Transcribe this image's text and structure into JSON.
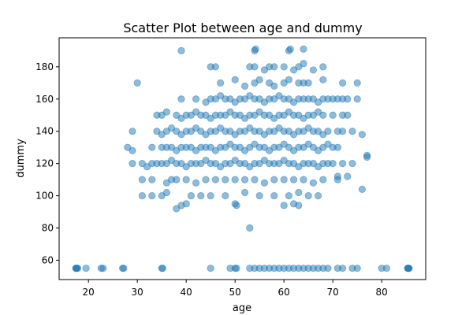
{
  "chart_data": {
    "type": "scatter",
    "title": "Scatter Plot between age and dummy",
    "xlabel": "age",
    "ylabel": "dummy",
    "xlim": [
      14,
      89
    ],
    "ylim": [
      48,
      198
    ],
    "xticks": [
      20,
      30,
      40,
      50,
      60,
      70,
      80
    ],
    "yticks": [
      60,
      80,
      100,
      120,
      140,
      160,
      180
    ],
    "grid": false,
    "legend": "none",
    "marker_color": "#1f77b4",
    "marker_alpha": 0.5,
    "series": [
      {
        "points": [
          [
            17.5,
            55
          ],
          [
            17.6,
            55
          ],
          [
            17.8,
            55
          ],
          [
            17.4,
            55
          ],
          [
            19.5,
            55
          ],
          [
            22.6,
            55
          ],
          [
            23,
            55
          ],
          [
            27,
            55
          ],
          [
            27.2,
            55
          ],
          [
            35,
            55
          ],
          [
            35.2,
            55
          ],
          [
            45,
            55
          ],
          [
            49,
            55
          ],
          [
            50,
            55
          ],
          [
            50.3,
            55
          ],
          [
            53,
            55
          ],
          [
            54,
            55
          ],
          [
            55,
            55
          ],
          [
            56,
            55
          ],
          [
            57,
            55
          ],
          [
            58,
            55
          ],
          [
            59,
            55
          ],
          [
            60,
            55
          ],
          [
            61,
            55
          ],
          [
            62,
            55
          ],
          [
            63,
            55
          ],
          [
            64,
            55
          ],
          [
            65,
            55
          ],
          [
            66,
            55
          ],
          [
            67,
            55
          ],
          [
            68,
            55
          ],
          [
            69,
            55
          ],
          [
            71,
            55
          ],
          [
            72,
            55
          ],
          [
            74,
            55
          ],
          [
            75,
            55
          ],
          [
            80,
            55
          ],
          [
            81,
            55
          ],
          [
            85.3,
            55
          ],
          [
            85.5,
            55
          ],
          [
            85.6,
            55
          ],
          [
            85.4,
            55
          ],
          [
            53,
            80
          ],
          [
            38,
            92
          ],
          [
            39,
            94
          ],
          [
            40,
            95
          ],
          [
            50,
            95
          ],
          [
            50.3,
            94
          ],
          [
            60,
            94
          ],
          [
            62,
            95
          ],
          [
            63,
            94
          ],
          [
            31,
            100
          ],
          [
            33,
            100
          ],
          [
            35,
            100
          ],
          [
            36,
            102
          ],
          [
            41,
            100
          ],
          [
            43,
            100
          ],
          [
            45,
            100
          ],
          [
            48,
            100
          ],
          [
            52,
            102
          ],
          [
            55,
            100
          ],
          [
            58,
            100
          ],
          [
            61,
            100
          ],
          [
            63,
            102
          ],
          [
            65,
            100
          ],
          [
            67,
            100
          ],
          [
            76,
            104
          ],
          [
            31,
            110
          ],
          [
            33,
            110
          ],
          [
            36,
            108
          ],
          [
            37,
            110
          ],
          [
            38,
            110
          ],
          [
            40,
            110
          ],
          [
            42,
            108
          ],
          [
            44,
            110
          ],
          [
            46,
            110
          ],
          [
            48,
            110
          ],
          [
            50,
            110
          ],
          [
            52,
            110
          ],
          [
            54,
            110
          ],
          [
            56,
            108
          ],
          [
            58,
            110
          ],
          [
            60,
            110
          ],
          [
            62,
            110
          ],
          [
            64,
            110
          ],
          [
            66,
            108
          ],
          [
            68,
            110
          ],
          [
            71,
            110
          ],
          [
            71,
            112
          ],
          [
            73,
            112
          ],
          [
            29,
            120
          ],
          [
            31,
            120
          ],
          [
            32,
            118
          ],
          [
            33,
            120
          ],
          [
            34,
            120
          ],
          [
            35,
            120
          ],
          [
            36,
            120
          ],
          [
            37,
            122
          ],
          [
            38,
            120
          ],
          [
            39,
            120
          ],
          [
            40,
            118
          ],
          [
            41,
            120
          ],
          [
            42,
            120
          ],
          [
            43,
            120
          ],
          [
            44,
            122
          ],
          [
            45,
            120
          ],
          [
            46,
            120
          ],
          [
            47,
            118
          ],
          [
            48,
            120
          ],
          [
            49,
            120
          ],
          [
            50,
            122
          ],
          [
            51,
            120
          ],
          [
            52,
            120
          ],
          [
            53,
            118
          ],
          [
            54,
            120
          ],
          [
            55,
            120
          ],
          [
            56,
            122
          ],
          [
            57,
            120
          ],
          [
            58,
            120
          ],
          [
            59,
            120
          ],
          [
            60,
            122
          ],
          [
            61,
            120
          ],
          [
            62,
            120
          ],
          [
            63,
            118
          ],
          [
            64,
            120
          ],
          [
            65,
            120
          ],
          [
            66,
            120
          ],
          [
            67,
            118
          ],
          [
            68,
            120
          ],
          [
            69,
            120
          ],
          [
            70,
            120
          ],
          [
            72,
            120
          ],
          [
            74,
            120
          ],
          [
            77,
            124
          ],
          [
            77,
            125
          ],
          [
            28,
            130
          ],
          [
            29,
            128
          ],
          [
            33,
            130
          ],
          [
            35,
            130
          ],
          [
            36,
            130
          ],
          [
            37,
            130
          ],
          [
            38,
            128
          ],
          [
            39,
            130
          ],
          [
            40,
            130
          ],
          [
            41,
            130
          ],
          [
            42,
            128
          ],
          [
            43,
            130
          ],
          [
            44,
            130
          ],
          [
            45,
            130
          ],
          [
            46,
            128
          ],
          [
            47,
            130
          ],
          [
            48,
            130
          ],
          [
            49,
            132
          ],
          [
            50,
            130
          ],
          [
            51,
            130
          ],
          [
            52,
            128
          ],
          [
            53,
            130
          ],
          [
            54,
            132
          ],
          [
            55,
            130
          ],
          [
            56,
            130
          ],
          [
            57,
            128
          ],
          [
            58,
            130
          ],
          [
            59,
            130
          ],
          [
            60,
            132
          ],
          [
            61,
            130
          ],
          [
            62,
            128
          ],
          [
            63,
            130
          ],
          [
            64,
            130
          ],
          [
            65,
            132
          ],
          [
            66,
            130
          ],
          [
            67,
            128
          ],
          [
            68,
            130
          ],
          [
            69,
            132
          ],
          [
            70,
            130
          ],
          [
            71,
            130
          ],
          [
            29,
            140
          ],
          [
            34,
            140
          ],
          [
            35,
            138
          ],
          [
            36,
            140
          ],
          [
            37,
            142
          ],
          [
            38,
            140
          ],
          [
            39,
            138
          ],
          [
            40,
            140
          ],
          [
            41,
            140
          ],
          [
            42,
            142
          ],
          [
            43,
            140
          ],
          [
            44,
            138
          ],
          [
            45,
            140
          ],
          [
            46,
            140
          ],
          [
            47,
            142
          ],
          [
            48,
            140
          ],
          [
            49,
            140
          ],
          [
            50,
            138
          ],
          [
            51,
            140
          ],
          [
            52,
            140
          ],
          [
            53,
            142
          ],
          [
            54,
            140
          ],
          [
            55,
            140
          ],
          [
            56,
            138
          ],
          [
            57,
            140
          ],
          [
            58,
            140
          ],
          [
            59,
            142
          ],
          [
            60,
            140
          ],
          [
            61,
            140
          ],
          [
            62,
            138
          ],
          [
            63,
            140
          ],
          [
            64,
            140
          ],
          [
            65,
            142
          ],
          [
            66,
            140
          ],
          [
            67,
            140
          ],
          [
            68,
            138
          ],
          [
            69,
            140
          ],
          [
            71,
            140
          ],
          [
            72,
            140
          ],
          [
            74,
            140
          ],
          [
            76,
            138
          ],
          [
            34,
            150
          ],
          [
            35,
            150
          ],
          [
            36,
            152
          ],
          [
            38,
            150
          ],
          [
            39,
            148
          ],
          [
            40,
            150
          ],
          [
            41,
            150
          ],
          [
            42,
            152
          ],
          [
            43,
            150
          ],
          [
            44,
            150
          ],
          [
            45,
            148
          ],
          [
            46,
            150
          ],
          [
            47,
            150
          ],
          [
            48,
            150
          ],
          [
            49,
            152
          ],
          [
            50,
            150
          ],
          [
            51,
            150
          ],
          [
            52,
            148
          ],
          [
            53,
            150
          ],
          [
            54,
            150
          ],
          [
            55,
            152
          ],
          [
            56,
            150
          ],
          [
            57,
            150
          ],
          [
            58,
            148
          ],
          [
            59,
            150
          ],
          [
            60,
            150
          ],
          [
            61,
            152
          ],
          [
            62,
            150
          ],
          [
            63,
            150
          ],
          [
            64,
            148
          ],
          [
            65,
            150
          ],
          [
            66,
            150
          ],
          [
            67,
            152
          ],
          [
            68,
            150
          ],
          [
            70,
            150
          ],
          [
            72,
            150
          ],
          [
            73,
            150
          ],
          [
            39,
            160
          ],
          [
            42,
            160
          ],
          [
            44,
            158
          ],
          [
            45,
            160
          ],
          [
            46,
            160
          ],
          [
            47,
            162
          ],
          [
            48,
            160
          ],
          [
            49,
            160
          ],
          [
            50,
            158
          ],
          [
            51,
            160
          ],
          [
            52,
            160
          ],
          [
            53,
            162
          ],
          [
            54,
            160
          ],
          [
            55,
            160
          ],
          [
            56,
            158
          ],
          [
            57,
            160
          ],
          [
            58,
            160
          ],
          [
            59,
            162
          ],
          [
            60,
            160
          ],
          [
            61,
            160
          ],
          [
            62,
            158
          ],
          [
            63,
            160
          ],
          [
            64,
            160
          ],
          [
            65,
            160
          ],
          [
            66,
            160
          ],
          [
            67,
            158
          ],
          [
            68,
            160
          ],
          [
            69,
            160
          ],
          [
            70,
            160
          ],
          [
            71,
            160
          ],
          [
            72,
            160
          ],
          [
            73,
            160
          ],
          [
            75,
            160
          ],
          [
            30,
            170
          ],
          [
            47,
            170
          ],
          [
            50,
            172
          ],
          [
            52,
            168
          ],
          [
            54,
            170
          ],
          [
            55,
            172
          ],
          [
            57,
            170
          ],
          [
            58,
            168
          ],
          [
            60,
            170
          ],
          [
            61,
            172
          ],
          [
            63,
            170
          ],
          [
            64,
            170
          ],
          [
            65,
            170
          ],
          [
            68,
            172
          ],
          [
            72,
            170
          ],
          [
            75,
            170
          ],
          [
            45,
            180
          ],
          [
            46,
            180
          ],
          [
            53,
            180
          ],
          [
            54,
            180
          ],
          [
            56,
            178
          ],
          [
            57,
            180
          ],
          [
            58,
            180
          ],
          [
            60,
            180
          ],
          [
            62,
            178
          ],
          [
            63,
            180
          ],
          [
            64,
            182
          ],
          [
            66,
            178
          ],
          [
            68,
            180
          ],
          [
            39,
            190
          ],
          [
            54,
            190
          ],
          [
            54.2,
            191
          ],
          [
            61,
            190
          ],
          [
            61.3,
            191
          ],
          [
            64,
            191
          ]
        ]
      }
    ]
  }
}
